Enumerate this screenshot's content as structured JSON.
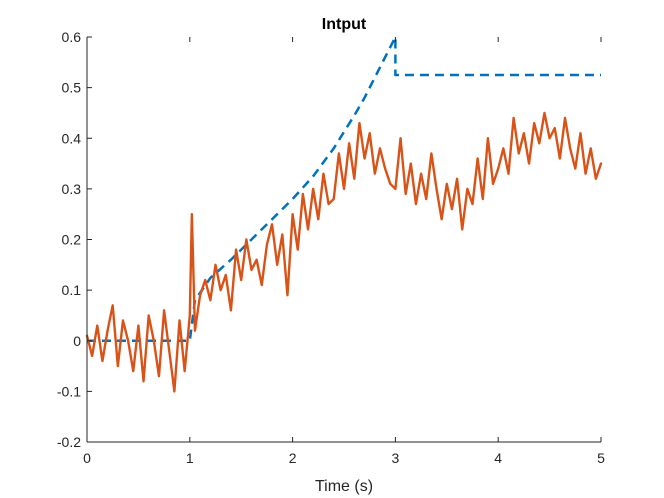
{
  "chart_data": {
    "type": "line",
    "title": "Intput",
    "xlabel": "Time (s)",
    "ylabel": "",
    "xlim": [
      0,
      5
    ],
    "ylim": [
      -0.2,
      0.6
    ],
    "xticks": [
      0,
      1,
      2,
      3,
      4,
      5
    ],
    "xtick_labels": [
      "0",
      "1",
      "2",
      "3",
      "4",
      "5"
    ],
    "yticks": [
      -0.2,
      -0.1,
      0,
      0.1,
      0.2,
      0.3,
      0.4,
      0.5,
      0.6
    ],
    "ytick_labels": [
      "-0.2",
      "-0.1",
      "0",
      "0.1",
      "0.2",
      "0.3",
      "0.4",
      "0.5",
      "0.6"
    ],
    "grid": false,
    "legend": "none",
    "series": [
      {
        "style": "dashed",
        "color": "#0072BD",
        "x": [
          0,
          0.5,
          1.0,
          1.05,
          1.2,
          1.4,
          1.6,
          1.8,
          2.0,
          2.2,
          2.4,
          2.6,
          2.7,
          2.8,
          2.9,
          2.95,
          3.0,
          3.0,
          3.5,
          4.0,
          4.5,
          5.0
        ],
        "y": [
          0,
          0,
          0,
          0.08,
          0.124,
          0.16,
          0.2,
          0.24,
          0.28,
          0.325,
          0.38,
          0.445,
          0.48,
          0.52,
          0.56,
          0.58,
          0.6,
          0.525,
          0.525,
          0.525,
          0.525,
          0.525
        ]
      },
      {
        "style": "solid",
        "color": "#D95319",
        "x": [
          0,
          0.05,
          0.1,
          0.15,
          0.2,
          0.25,
          0.3,
          0.35,
          0.4,
          0.45,
          0.5,
          0.55,
          0.6,
          0.65,
          0.7,
          0.75,
          0.8,
          0.85,
          0.9,
          0.95,
          1.0,
          1.02,
          1.05,
          1.1,
          1.15,
          1.2,
          1.25,
          1.3,
          1.35,
          1.4,
          1.45,
          1.5,
          1.55,
          1.6,
          1.65,
          1.7,
          1.75,
          1.8,
          1.85,
          1.9,
          1.95,
          2.0,
          2.05,
          2.1,
          2.15,
          2.2,
          2.25,
          2.3,
          2.35,
          2.4,
          2.45,
          2.5,
          2.55,
          2.6,
          2.65,
          2.7,
          2.75,
          2.8,
          2.85,
          2.9,
          2.95,
          3.0,
          3.05,
          3.1,
          3.15,
          3.2,
          3.25,
          3.3,
          3.35,
          3.4,
          3.45,
          3.5,
          3.55,
          3.6,
          3.65,
          3.7,
          3.75,
          3.8,
          3.85,
          3.9,
          3.95,
          4.0,
          4.05,
          4.1,
          4.15,
          4.2,
          4.25,
          4.3,
          4.35,
          4.4,
          4.45,
          4.5,
          4.55,
          4.6,
          4.65,
          4.7,
          4.75,
          4.8,
          4.85,
          4.9,
          4.95,
          5.0
        ],
        "y": [
          0.01,
          -0.03,
          0.03,
          -0.04,
          0.02,
          0.07,
          -0.05,
          0.04,
          0.0,
          -0.06,
          0.03,
          -0.08,
          0.05,
          0.0,
          -0.07,
          0.06,
          -0.02,
          -0.1,
          0.04,
          -0.06,
          0.05,
          0.25,
          0.02,
          0.09,
          0.12,
          0.08,
          0.15,
          0.1,
          0.13,
          0.06,
          0.18,
          0.12,
          0.2,
          0.14,
          0.16,
          0.11,
          0.19,
          0.23,
          0.15,
          0.21,
          0.09,
          0.25,
          0.18,
          0.29,
          0.22,
          0.3,
          0.24,
          0.33,
          0.27,
          0.28,
          0.37,
          0.3,
          0.39,
          0.32,
          0.43,
          0.36,
          0.41,
          0.33,
          0.38,
          0.34,
          0.31,
          0.3,
          0.4,
          0.29,
          0.35,
          0.27,
          0.33,
          0.28,
          0.37,
          0.3,
          0.24,
          0.31,
          0.26,
          0.32,
          0.22,
          0.3,
          0.27,
          0.36,
          0.28,
          0.4,
          0.31,
          0.34,
          0.38,
          0.33,
          0.44,
          0.37,
          0.41,
          0.35,
          0.43,
          0.39,
          0.45,
          0.4,
          0.42,
          0.36,
          0.44,
          0.38,
          0.34,
          0.41,
          0.33,
          0.38,
          0.32,
          0.35
        ]
      }
    ]
  }
}
